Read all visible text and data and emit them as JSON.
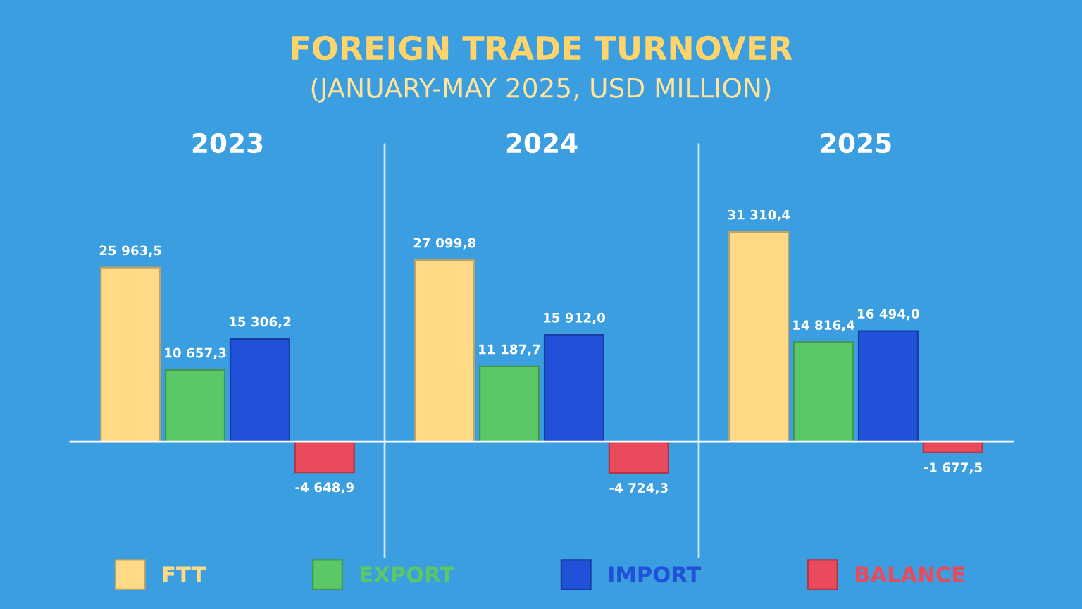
{
  "chart_data": {
    "type": "bar",
    "title": "FOREIGN TRADE TURNOVER",
    "subtitle": "(JANUARY-MAY 2025, USD MILLION)",
    "categories": [
      "2023",
      "2024",
      "2025"
    ],
    "series": [
      {
        "name": "FTT",
        "color": "#ffd986",
        "values": [
          25963.5,
          27099.8,
          31310.4
        ],
        "value_labels": [
          "25 963,5",
          "27 099,8",
          "31 310,4"
        ]
      },
      {
        "name": "EXPORT",
        "color": "#5ac866",
        "values": [
          10657.3,
          11187.7,
          14816.4
        ],
        "value_labels": [
          "10 657,3",
          "11 187,7",
          "14 816,4"
        ]
      },
      {
        "name": "IMPORT",
        "color": "#2151d9",
        "values": [
          15306.2,
          15912.0,
          16494.0
        ],
        "value_labels": [
          "15 306,2",
          "15 912,0",
          "16 494,0"
        ]
      },
      {
        "name": "BALANCE",
        "color": "#e94b5d",
        "values": [
          -4648.9,
          -4724.3,
          -1677.5
        ],
        "value_labels": [
          "-4 648,9",
          "-4 724,3",
          "-1 677,5"
        ]
      }
    ],
    "legend": "bottom"
  }
}
